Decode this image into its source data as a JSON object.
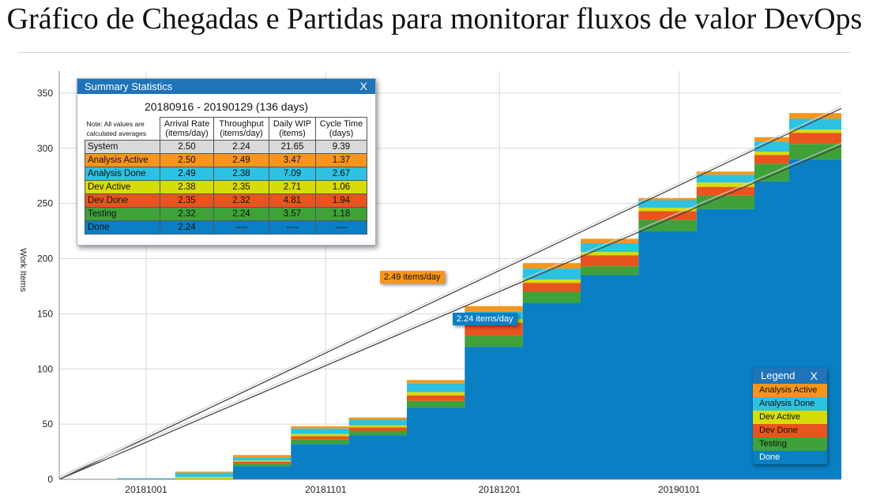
{
  "page_title": "Gráfico de Chegadas e Partidas para monitorar fluxos de valor DevOps",
  "colors": {
    "done": "#0a7fc4",
    "testing": "#3ea13a",
    "dev_done": "#e8541e",
    "dev_active": "#d7db09",
    "analysis_done": "#2ec1e1",
    "analysis_active": "#f7961b",
    "header_blue": "#1f73b7",
    "system_row": "#d9d9d9"
  },
  "summary": {
    "title": "Summary Statistics",
    "close": "X",
    "period": "20180916 - 20190129 (136 days)",
    "note": "Note: All values are calculated averages",
    "columns": [
      "Arrival Rate (items/day)",
      "Throughput (items/day)",
      "Daily WIP (items)",
      "Cycle Time (days)"
    ],
    "rows": [
      {
        "label": "System",
        "arrival": "2.50",
        "throughput": "2.24",
        "wip": "21.65",
        "cycle": "9.39"
      },
      {
        "label": "Analysis Active",
        "arrival": "2.50",
        "throughput": "2.49",
        "wip": "3.47",
        "cycle": "1.37"
      },
      {
        "label": "Analysis Done",
        "arrival": "2.49",
        "throughput": "2.38",
        "wip": "7.09",
        "cycle": "2.67"
      },
      {
        "label": "Dev Active",
        "arrival": "2.38",
        "throughput": "2.35",
        "wip": "2.71",
        "cycle": "1.06"
      },
      {
        "label": "Dev Done",
        "arrival": "2.35",
        "throughput": "2.32",
        "wip": "4.81",
        "cycle": "1.94"
      },
      {
        "label": "Testing",
        "arrival": "2.32",
        "throughput": "2.24",
        "wip": "3.57",
        "cycle": "1.18"
      },
      {
        "label": "Done",
        "arrival": "2.24",
        "throughput": "----",
        "wip": "----",
        "cycle": "----"
      }
    ]
  },
  "rate_labels": {
    "arrival": "2.49 items/day",
    "throughput": "2.24 items/day"
  },
  "legend": {
    "title": "Legend",
    "close": "X",
    "items": [
      "Analysis Active",
      "Analysis Done",
      "Dev Active",
      "Dev Done",
      "Testing",
      "Done"
    ]
  },
  "chart_data": {
    "type": "area",
    "stacked": true,
    "title": "",
    "ylabel": "Work Items",
    "xlabel": "",
    "ylim": [
      0,
      370
    ],
    "y_ticks": [
      0,
      50,
      100,
      150,
      200,
      250,
      300,
      350
    ],
    "x_range": [
      "2018-09-16",
      "2019-01-29"
    ],
    "x_ticks": [
      "20181001",
      "20181101",
      "20181201",
      "20190101"
    ],
    "grid": true,
    "legend_position": "bottom-right",
    "x": [
      "2018-09-16",
      "2018-09-26",
      "2018-10-06",
      "2018-10-16",
      "2018-10-26",
      "2018-11-05",
      "2018-11-15",
      "2018-11-25",
      "2018-12-05",
      "2018-12-15",
      "2018-12-25",
      "2019-01-04",
      "2019-01-14",
      "2019-01-20",
      "2019-01-29"
    ],
    "series": [
      {
        "name": "Done",
        "values": [
          0,
          0,
          0,
          12,
          32,
          40,
          65,
          120,
          160,
          185,
          225,
          245,
          270,
          290,
          305
        ]
      },
      {
        "name": "Testing",
        "values": [
          0,
          0,
          0,
          2,
          4,
          4,
          6,
          10,
          10,
          8,
          10,
          12,
          16,
          14,
          5
        ]
      },
      {
        "name": "Dev Done",
        "values": [
          0,
          0,
          0,
          2,
          3,
          3,
          5,
          12,
          8,
          10,
          8,
          8,
          8,
          10,
          4
        ]
      },
      {
        "name": "Dev Active",
        "values": [
          0,
          0,
          2,
          1,
          2,
          2,
          3,
          3,
          3,
          3,
          3,
          4,
          3,
          3,
          6
        ]
      },
      {
        "name": "Analysis Done",
        "values": [
          0,
          1,
          4,
          3,
          5,
          5,
          8,
          7,
          10,
          8,
          7,
          7,
          9,
          10,
          18
        ]
      },
      {
        "name": "Analysis Active",
        "values": [
          0,
          0,
          1,
          2,
          2,
          2,
          3,
          5,
          5,
          4,
          2,
          3,
          4,
          5,
          3
        ]
      }
    ],
    "trend_lines": [
      {
        "name": "2.49 items/day",
        "rate": 2.49,
        "start": 0
      },
      {
        "name": "2.24 items/day",
        "rate": 2.24,
        "start": 0
      }
    ]
  }
}
